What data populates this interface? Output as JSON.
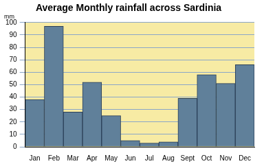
{
  "chart_data": {
    "type": "bar",
    "title": "Average Monthly rainfall across Sardinia",
    "y_label": "mm",
    "categories": [
      "Jan",
      "Feb",
      "Mar",
      "Apr",
      "May",
      "Jun",
      "Jul",
      "Aug",
      "Sept",
      "Oct",
      "Nov",
      "Dec"
    ],
    "values": [
      38,
      97,
      28,
      52,
      25,
      5,
      3,
      4,
      39,
      58,
      51,
      66
    ],
    "color": "#60809a",
    "ylim": [
      0,
      100
    ],
    "yticks": [
      0,
      10,
      20,
      30,
      40,
      50,
      60,
      70,
      80,
      90,
      100
    ],
    "grid": true
  }
}
